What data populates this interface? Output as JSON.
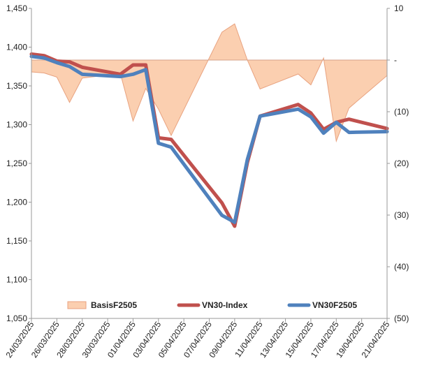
{
  "chart_data": {
    "type": "line",
    "title": "",
    "xlabel": "",
    "ylabel": "",
    "x": [
      "24/03/2025",
      "25/03/2025",
      "26/03/2025",
      "27/03/2025",
      "28/03/2025",
      "31/03/2025",
      "01/04/2025",
      "02/04/2025",
      "03/04/2025",
      "04/04/2025",
      "08/04/2025",
      "09/04/2025",
      "10/04/2025",
      "11/04/2025",
      "14/04/2025",
      "15/04/2025",
      "16/04/2025",
      "17/04/2025",
      "18/04/2025",
      "21/04/2025"
    ],
    "x_tick_labels": [
      "24/03/2025",
      "26/03/2025",
      "28/03/2025",
      "30/03/2025",
      "01/04/2025",
      "03/04/2025",
      "05/04/2025",
      "07/04/2025",
      "09/04/2025",
      "11/04/2025",
      "13/04/2025",
      "15/04/2025",
      "17/04/2025",
      "19/04/2025",
      "21/04/2025"
    ],
    "y_left": {
      "ylim": [
        1050,
        1450
      ],
      "ticks": [
        1050,
        1100,
        1150,
        1200,
        1250,
        1300,
        1350,
        1400,
        1450
      ],
      "tick_labels": [
        "1,050",
        "1,100",
        "1,150",
        "1,200",
        "1,250",
        "1,300",
        "1,350",
        "1,400",
        "1,450"
      ]
    },
    "y_right": {
      "ylim": [
        -50,
        10
      ],
      "ticks": [
        -50,
        -40,
        -30,
        -20,
        -10,
        0,
        10
      ],
      "tick_labels": [
        "(50)",
        "(40)",
        "(30)",
        "(20)",
        "(10)",
        "-",
        "10"
      ]
    },
    "series": [
      {
        "name": "BasisF2505",
        "kind": "area",
        "axis": "right",
        "color": "#fbcfb0",
        "edge_color": "#e8a27f",
        "values": [
          -2.3,
          -2.5,
          -3.3,
          -8.2,
          -3.5,
          -2.6,
          -11.8,
          -5.5,
          -9.5,
          -14.6,
          5.4,
          7.0,
          0.0,
          -5.6,
          -2.7,
          -4.8,
          0.4,
          -15.7,
          -9.3,
          -3.0
        ]
      },
      {
        "name": "VN30-Index",
        "kind": "line",
        "axis": "left",
        "color": "#c0504d",
        "values": [
          1391,
          1389,
          1382,
          1381,
          1374,
          1365,
          1377,
          1377,
          1283,
          1281,
          1199,
          1169,
          1251,
          1311,
          1326,
          1315,
          1294,
          1303,
          1307,
          1295
        ]
      },
      {
        "name": "VN30F2505",
        "kind": "line",
        "axis": "left",
        "color": "#4f81bd",
        "values": [
          1388,
          1386,
          1380,
          1375,
          1365,
          1362,
          1365,
          1371,
          1276,
          1271,
          1183,
          1174,
          1255,
          1311,
          1320,
          1310,
          1289,
          1303,
          1290,
          1291
        ]
      }
    ],
    "day_positions": [
      0,
      1,
      2,
      3,
      4,
      7,
      8,
      9,
      10,
      11,
      15,
      16,
      17,
      18,
      21,
      22,
      23,
      24,
      25,
      28
    ],
    "grid": false,
    "legend": {
      "placement": "bottom-inside"
    }
  }
}
